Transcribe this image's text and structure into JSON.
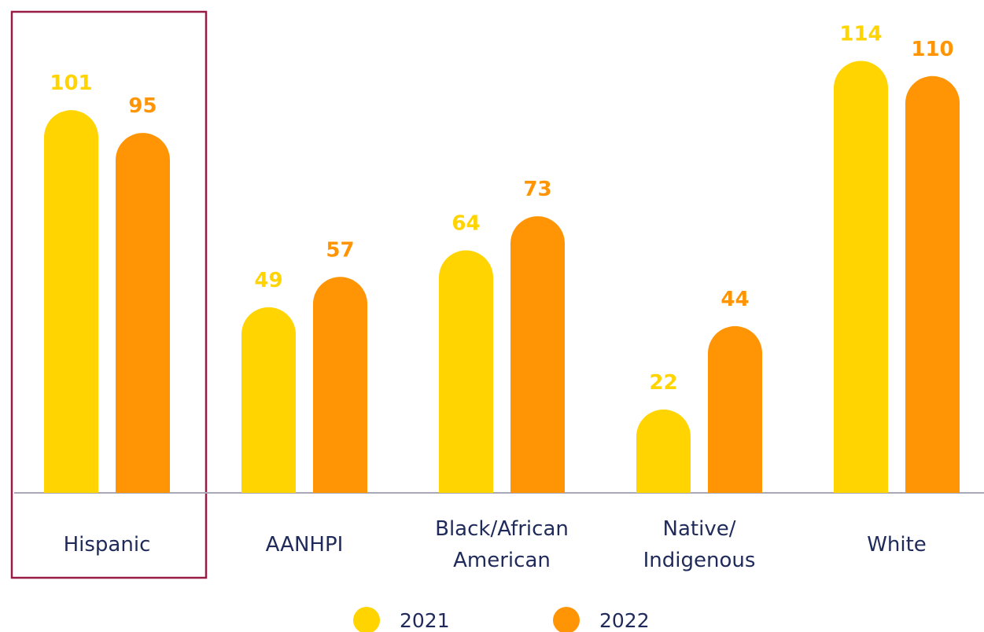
{
  "chart_data": {
    "type": "bar",
    "categories": [
      "Hispanic",
      "AANHPI",
      "Black/African American",
      "Native/ Indigenous",
      "White"
    ],
    "series": [
      {
        "name": "2021",
        "color": "#FFD400",
        "values": [
          101,
          49,
          64,
          22,
          114
        ]
      },
      {
        "name": "2022",
        "color": "#FF9505",
        "values": [
          95,
          57,
          73,
          44,
          110
        ]
      }
    ]
  }
}
